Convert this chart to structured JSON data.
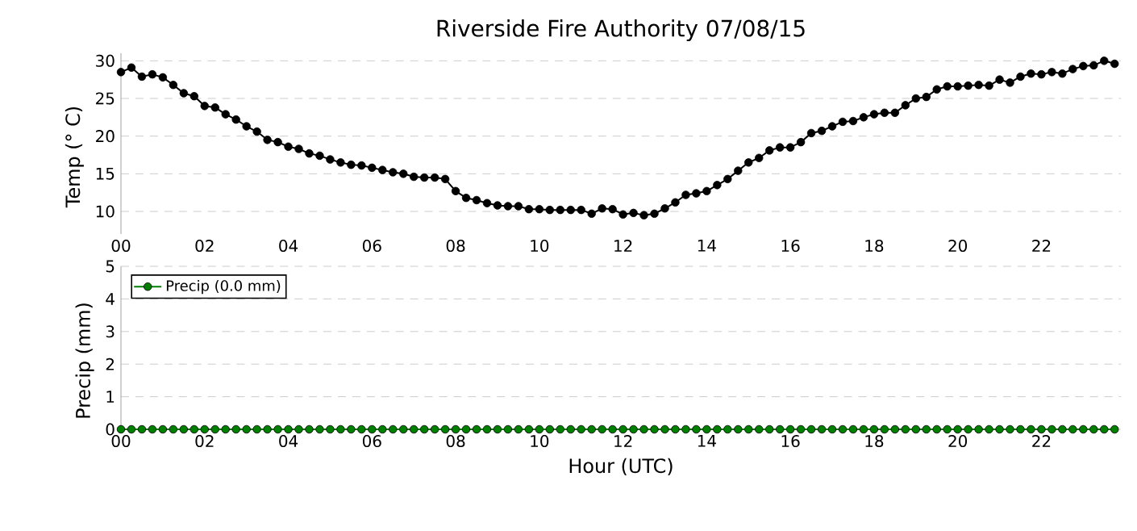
{
  "chart_data": [
    {
      "type": "line",
      "title": "Riverside Fire Authority 07/08/15",
      "ylabel": "Temp (° C)",
      "xlim": [
        0,
        23.9
      ],
      "ylim": [
        7,
        31
      ],
      "xticks": [
        {
          "value": 0,
          "label": "00"
        },
        {
          "value": 2,
          "label": "02"
        },
        {
          "value": 4,
          "label": "04"
        },
        {
          "value": 6,
          "label": "06"
        },
        {
          "value": 8,
          "label": "08"
        },
        {
          "value": 10,
          "label": "10"
        },
        {
          "value": 12,
          "label": "12"
        },
        {
          "value": 14,
          "label": "14"
        },
        {
          "value": 16,
          "label": "16"
        },
        {
          "value": 18,
          "label": "18"
        },
        {
          "value": 20,
          "label": "20"
        },
        {
          "value": 22,
          "label": "22"
        }
      ],
      "yticks": [
        10,
        15,
        20,
        25,
        30
      ],
      "grid": "y",
      "marker": "circle",
      "x": [
        0,
        0.25,
        0.5,
        0.75,
        1,
        1.25,
        1.5,
        1.75,
        2,
        2.25,
        2.5,
        2.75,
        3,
        3.25,
        3.5,
        3.75,
        4,
        4.25,
        4.5,
        4.75,
        5,
        5.25,
        5.5,
        5.75,
        6,
        6.25,
        6.5,
        6.75,
        7,
        7.25,
        7.5,
        7.75,
        8,
        8.25,
        8.5,
        8.75,
        9,
        9.25,
        9.5,
        9.75,
        10,
        10.25,
        10.5,
        10.75,
        11,
        11.25,
        11.5,
        11.75,
        12,
        12.25,
        12.5,
        12.75,
        13,
        13.25,
        13.5,
        13.75,
        14,
        14.25,
        14.5,
        14.75,
        15,
        15.25,
        15.5,
        15.75,
        16,
        16.25,
        16.5,
        16.75,
        17,
        17.25,
        17.5,
        17.75,
        18,
        18.25,
        18.5,
        18.75,
        19,
        19.25,
        19.5,
        19.75,
        20,
        20.25,
        20.5,
        20.75,
        21,
        21.25,
        21.5,
        21.75,
        22,
        22.25,
        22.5,
        22.75,
        23,
        23.25,
        23.5,
        23.75
      ],
      "series": [
        {
          "color": "#000000",
          "values": [
            28.5,
            29.1,
            27.9,
            28.2,
            27.8,
            26.8,
            25.7,
            25.3,
            24.0,
            23.8,
            22.9,
            22.2,
            21.3,
            20.6,
            19.5,
            19.2,
            18.6,
            18.3,
            17.7,
            17.4,
            16.9,
            16.5,
            16.2,
            16.1,
            15.8,
            15.5,
            15.2,
            15.0,
            14.6,
            14.5,
            14.5,
            14.3,
            12.7,
            11.8,
            11.5,
            11.1,
            10.8,
            10.7,
            10.7,
            10.3,
            10.3,
            10.2,
            10.2,
            10.2,
            10.2,
            9.7,
            10.4,
            10.3,
            9.6,
            9.8,
            9.5,
            9.7,
            10.4,
            11.2,
            12.2,
            12.4,
            12.7,
            13.5,
            14.3,
            15.4,
            16.5,
            17.1,
            18.1,
            18.5,
            18.5,
            19.2,
            20.4,
            20.7,
            21.3,
            21.9,
            22.0,
            22.5,
            22.9,
            23.1,
            23.1,
            24.1,
            25.0,
            25.2,
            26.2,
            26.6,
            26.6,
            26.7,
            26.8,
            26.7,
            27.5,
            27.1,
            27.9,
            28.3,
            28.2,
            28.5,
            28.3,
            28.9,
            29.3,
            29.4,
            30.0,
            29.6
          ]
        }
      ]
    },
    {
      "type": "line",
      "xlabel": "Hour (UTC)",
      "ylabel": "Precip (mm)",
      "xlim": [
        0,
        23.9
      ],
      "ylim": [
        0,
        5
      ],
      "xticks": [
        {
          "value": 0,
          "label": "00"
        },
        {
          "value": 2,
          "label": "02"
        },
        {
          "value": 4,
          "label": "04"
        },
        {
          "value": 6,
          "label": "06"
        },
        {
          "value": 8,
          "label": "08"
        },
        {
          "value": 10,
          "label": "10"
        },
        {
          "value": 12,
          "label": "12"
        },
        {
          "value": 14,
          "label": "14"
        },
        {
          "value": 16,
          "label": "16"
        },
        {
          "value": 18,
          "label": "18"
        },
        {
          "value": 20,
          "label": "20"
        },
        {
          "value": 22,
          "label": "22"
        }
      ],
      "yticks": [
        0,
        1,
        2,
        3,
        4,
        5
      ],
      "grid": "y",
      "marker": "circle",
      "legend": "top left",
      "x": [
        0,
        0.25,
        0.5,
        0.75,
        1,
        1.25,
        1.5,
        1.75,
        2,
        2.25,
        2.5,
        2.75,
        3,
        3.25,
        3.5,
        3.75,
        4,
        4.25,
        4.5,
        4.75,
        5,
        5.25,
        5.5,
        5.75,
        6,
        6.25,
        6.5,
        6.75,
        7,
        7.25,
        7.5,
        7.75,
        8,
        8.25,
        8.5,
        8.75,
        9,
        9.25,
        9.5,
        9.75,
        10,
        10.25,
        10.5,
        10.75,
        11,
        11.25,
        11.5,
        11.75,
        12,
        12.25,
        12.5,
        12.75,
        13,
        13.25,
        13.5,
        13.75,
        14,
        14.25,
        14.5,
        14.75,
        15,
        15.25,
        15.5,
        15.75,
        16,
        16.25,
        16.5,
        16.75,
        17,
        17.25,
        17.5,
        17.75,
        18,
        18.25,
        18.5,
        18.75,
        19,
        19.25,
        19.5,
        19.75,
        20,
        20.25,
        20.5,
        20.75,
        21,
        21.25,
        21.5,
        21.75,
        22,
        22.25,
        22.5,
        22.75,
        23,
        23.25,
        23.5,
        23.75
      ],
      "series": [
        {
          "name": "Precip (0.0 mm)",
          "color": "#007f00",
          "values": [
            0,
            0,
            0,
            0,
            0,
            0,
            0,
            0,
            0,
            0,
            0,
            0,
            0,
            0,
            0,
            0,
            0,
            0,
            0,
            0,
            0,
            0,
            0,
            0,
            0,
            0,
            0,
            0,
            0,
            0,
            0,
            0,
            0,
            0,
            0,
            0,
            0,
            0,
            0,
            0,
            0,
            0,
            0,
            0,
            0,
            0,
            0,
            0,
            0,
            0,
            0,
            0,
            0,
            0,
            0,
            0,
            0,
            0,
            0,
            0,
            0,
            0,
            0,
            0,
            0,
            0,
            0,
            0,
            0,
            0,
            0,
            0,
            0,
            0,
            0,
            0,
            0,
            0,
            0,
            0,
            0,
            0,
            0,
            0,
            0,
            0,
            0,
            0,
            0,
            0,
            0,
            0,
            0,
            0,
            0,
            0
          ]
        }
      ]
    }
  ]
}
